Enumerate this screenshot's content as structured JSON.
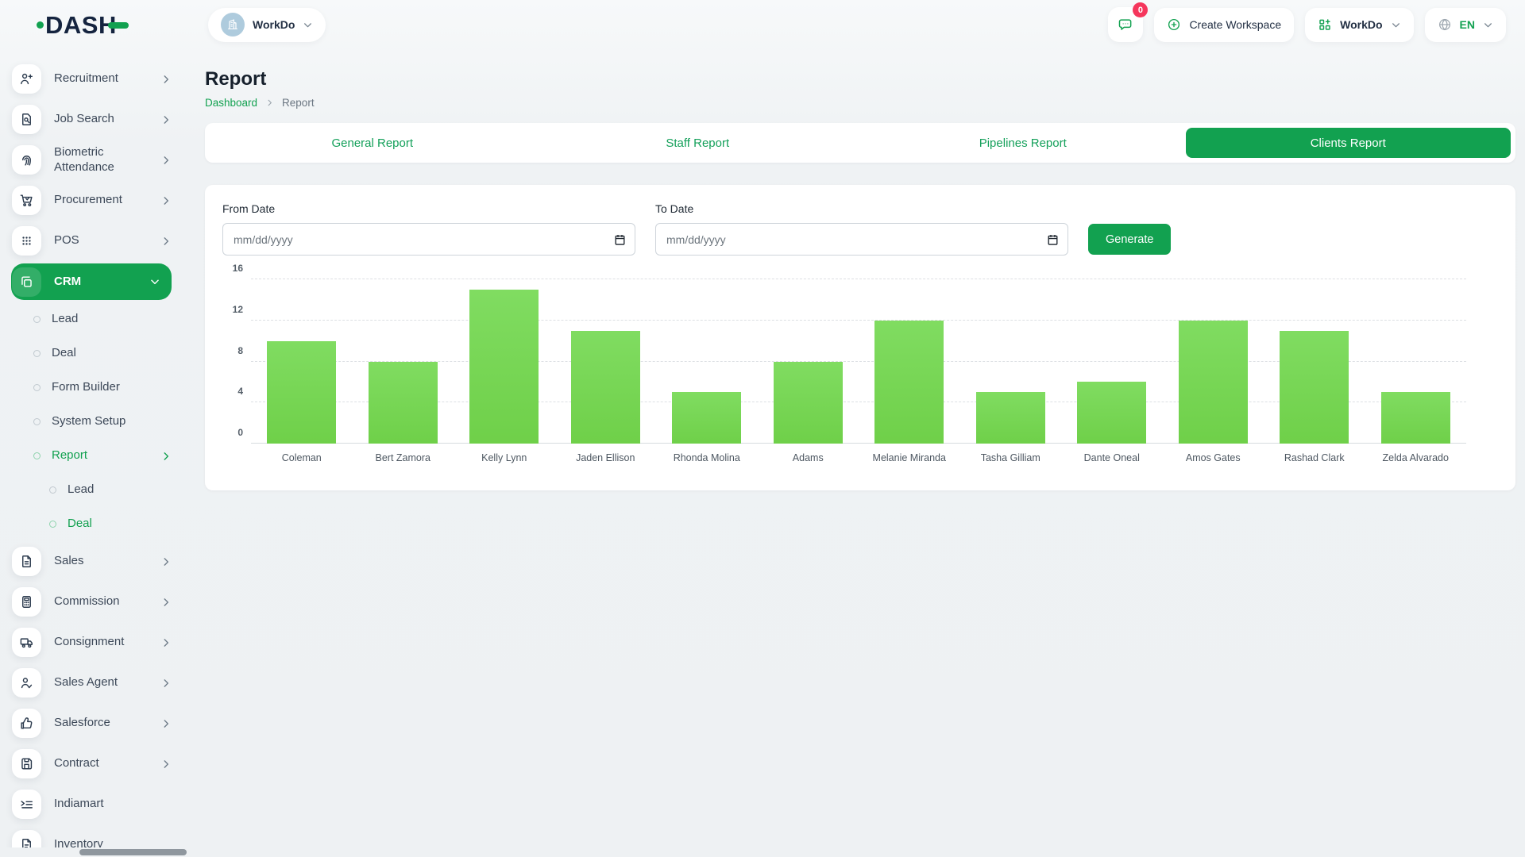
{
  "app": {
    "logo_text": "DASH"
  },
  "header": {
    "workspace_label": "WorkDo",
    "messages_badge": "0",
    "create_workspace_label": "Create Workspace",
    "workdo_menu_label": "WorkDo",
    "language": "EN"
  },
  "sidebar": {
    "items": [
      {
        "label": "Recruitment",
        "icon": "recruitment-icon",
        "type": "top",
        "chevron": "right"
      },
      {
        "label": "Job Search",
        "icon": "job-search-icon",
        "type": "top",
        "chevron": "right"
      },
      {
        "label": "Biometric Attendance",
        "icon": "biometric-attendance-icon",
        "type": "top",
        "chevron": "right"
      },
      {
        "label": "Procurement",
        "icon": "procurement-icon",
        "type": "top",
        "chevron": "right"
      },
      {
        "label": "POS",
        "icon": "pos-icon",
        "type": "top",
        "chevron": "right"
      },
      {
        "label": "CRM",
        "icon": "crm-icon",
        "type": "top",
        "chevron": "down",
        "active": true
      },
      {
        "label": "Lead",
        "type": "sub"
      },
      {
        "label": "Deal",
        "type": "sub"
      },
      {
        "label": "Form Builder",
        "type": "sub"
      },
      {
        "label": "System Setup",
        "type": "sub"
      },
      {
        "label": "Report",
        "type": "sub",
        "chevron": "right",
        "active": true
      },
      {
        "label": "Lead",
        "type": "subsub"
      },
      {
        "label": "Deal",
        "type": "subsub",
        "active": true
      },
      {
        "label": "Sales",
        "icon": "sales-icon",
        "type": "top",
        "chevron": "right"
      },
      {
        "label": "Commission",
        "icon": "commission-icon",
        "type": "top",
        "chevron": "right"
      },
      {
        "label": "Consignment",
        "icon": "consignment-icon",
        "type": "top",
        "chevron": "right"
      },
      {
        "label": "Sales Agent",
        "icon": "sales-agent-icon",
        "type": "top",
        "chevron": "right"
      },
      {
        "label": "Salesforce",
        "icon": "salesforce-icon",
        "type": "top",
        "chevron": "right"
      },
      {
        "label": "Contract",
        "icon": "contract-icon",
        "type": "top",
        "chevron": "right"
      },
      {
        "label": "Indiamart",
        "icon": "indiamart-icon",
        "type": "top"
      },
      {
        "label": "Inventory",
        "icon": "inventory-icon",
        "type": "top"
      }
    ]
  },
  "page": {
    "title": "Report",
    "breadcrumb_link": "Dashboard",
    "breadcrumb_current": "Report"
  },
  "tabs": {
    "items": [
      {
        "label": "General Report"
      },
      {
        "label": "Staff Report"
      },
      {
        "label": "Pipelines Report"
      },
      {
        "label": "Clients Report",
        "active": true
      }
    ]
  },
  "filter": {
    "from_label": "From Date",
    "to_label": "To Date",
    "date_placeholder": "mm/dd/yyyy",
    "generate_label": "Generate"
  },
  "chart_data": {
    "type": "bar",
    "title": "",
    "xlabel": "",
    "ylabel": "",
    "categories": [
      "Coleman",
      "Bert Zamora",
      "Kelly Lynn",
      "Jaden Ellison",
      "Rhonda Molina",
      "Adams",
      "Melanie Miranda",
      "Tasha Gilliam",
      "Dante Oneal",
      "Amos Gates",
      "Rashad Clark",
      "Zelda Alvarado"
    ],
    "values": [
      10,
      8,
      15,
      11,
      5,
      8,
      12,
      5,
      6,
      12,
      11,
      5
    ],
    "ylim": [
      0,
      16
    ],
    "yticks": [
      0,
      4,
      8,
      12,
      16
    ],
    "grid": "horizontal-dashed",
    "legend": "none",
    "bar_color": "#76d652"
  },
  "colors": {
    "primary_green": "#12a150",
    "bar_green": "#76d652",
    "badge_pink": "#f5365c",
    "logo_navy": "#15243f"
  }
}
